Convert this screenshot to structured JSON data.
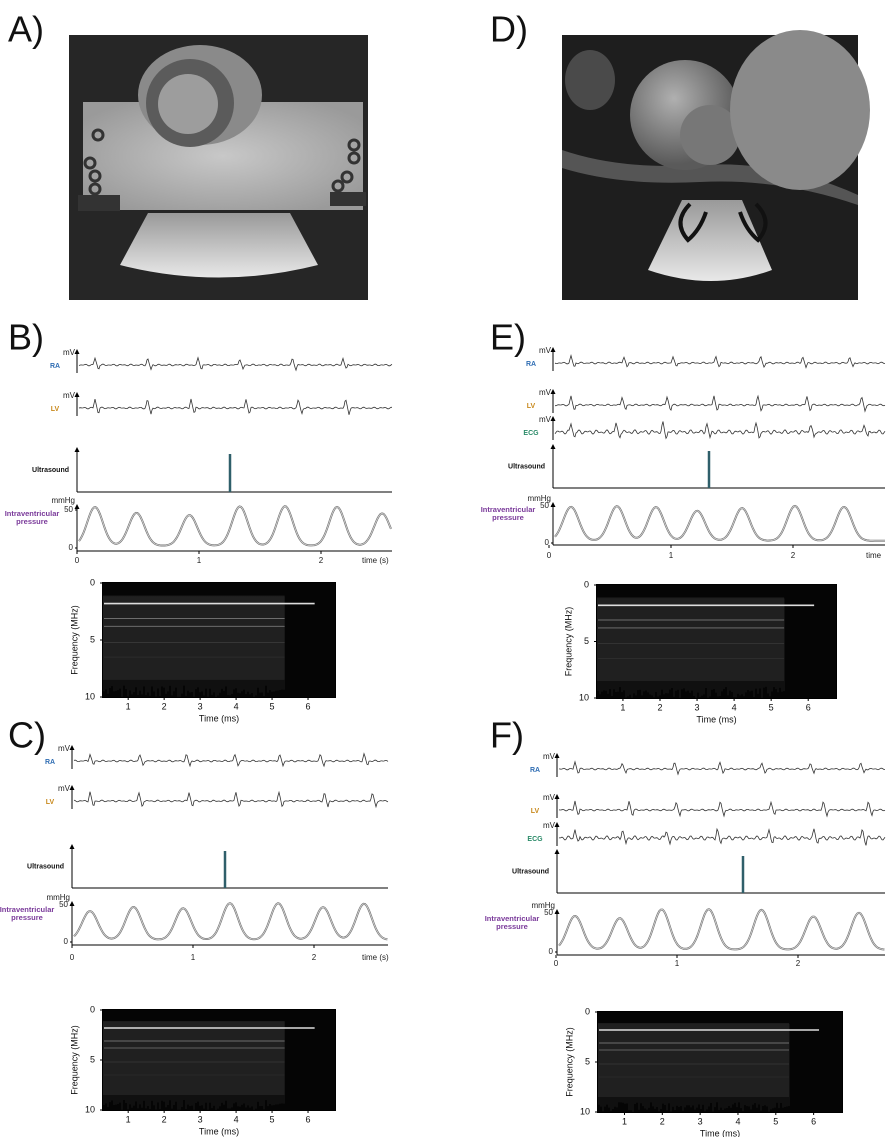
{
  "panels": [
    {
      "label": "A)"
    },
    {
      "label": "B)",
      "signals": [
        {
          "name": "RA",
          "unit": "mV"
        },
        {
          "name": "LV",
          "unit": "mV"
        }
      ],
      "ultrasound": "Ultrasound",
      "pressure": {
        "name": "Intraventricular pressure",
        "unit": "mmHg",
        "ticks": [
          0,
          50
        ]
      },
      "time_axis": {
        "ticks": [
          0,
          1,
          2
        ],
        "label": "time (s)"
      },
      "spectrogram": {
        "ylabel": "Frequency (MHz)",
        "yticks": [
          0,
          5,
          10
        ],
        "xlabel": "Time (ms)",
        "xticks": [
          1,
          2,
          3,
          4,
          5,
          6
        ]
      }
    },
    {
      "label": "C)",
      "signals": [
        {
          "name": "RA",
          "unit": "mV"
        },
        {
          "name": "LV",
          "unit": "mV"
        }
      ],
      "ultrasound": "Ultrasound",
      "pressure": {
        "name": "Intraventricular pressure",
        "unit": "mmHg",
        "ticks": [
          0,
          50
        ]
      },
      "time_axis": {
        "ticks": [
          0,
          1,
          2
        ],
        "label": "time (s)"
      },
      "spectrogram": {
        "ylabel": "Frequency (MHz)",
        "yticks": [
          0,
          5,
          10
        ],
        "xlabel": "Time (ms)",
        "xticks": [
          1,
          2,
          3,
          4,
          5,
          6
        ]
      }
    },
    {
      "label": "D)"
    },
    {
      "label": "E)",
      "signals": [
        {
          "name": "RA",
          "unit": "mV"
        },
        {
          "name": "LV",
          "unit": "mV"
        },
        {
          "name": "ECG",
          "unit": "mV"
        }
      ],
      "ultrasound": "Ultrasound",
      "pressure": {
        "name": "Intraventricular pressure",
        "unit": "mmHg",
        "ticks": [
          0,
          50
        ]
      },
      "time_axis": {
        "ticks": [
          0,
          1,
          2
        ],
        "label": "time"
      },
      "spectrogram": {
        "ylabel": "Frequency (MHz)",
        "yticks": [
          0,
          5,
          10
        ],
        "xlabel": "Time (ms)",
        "xticks": [
          1,
          2,
          3,
          4,
          5,
          6
        ]
      }
    },
    {
      "label": "F)",
      "signals": [
        {
          "name": "RA",
          "unit": "mV"
        },
        {
          "name": "LV",
          "unit": "mV"
        },
        {
          "name": "ECG",
          "unit": "mV"
        }
      ],
      "ultrasound": "Ultrasound",
      "pressure": {
        "name": "Intraventricular pressure",
        "unit": "mmHg",
        "ticks": [
          0,
          50
        ]
      },
      "time_axis": {
        "ticks": [
          0,
          1,
          2
        ]
      },
      "spectrogram": {
        "ylabel": "Frequency (MHz)",
        "yticks": [
          0,
          5,
          10
        ],
        "xlabel": "Time (ms)",
        "xticks": [
          1,
          2,
          3,
          4,
          5,
          6
        ]
      }
    }
  ]
}
